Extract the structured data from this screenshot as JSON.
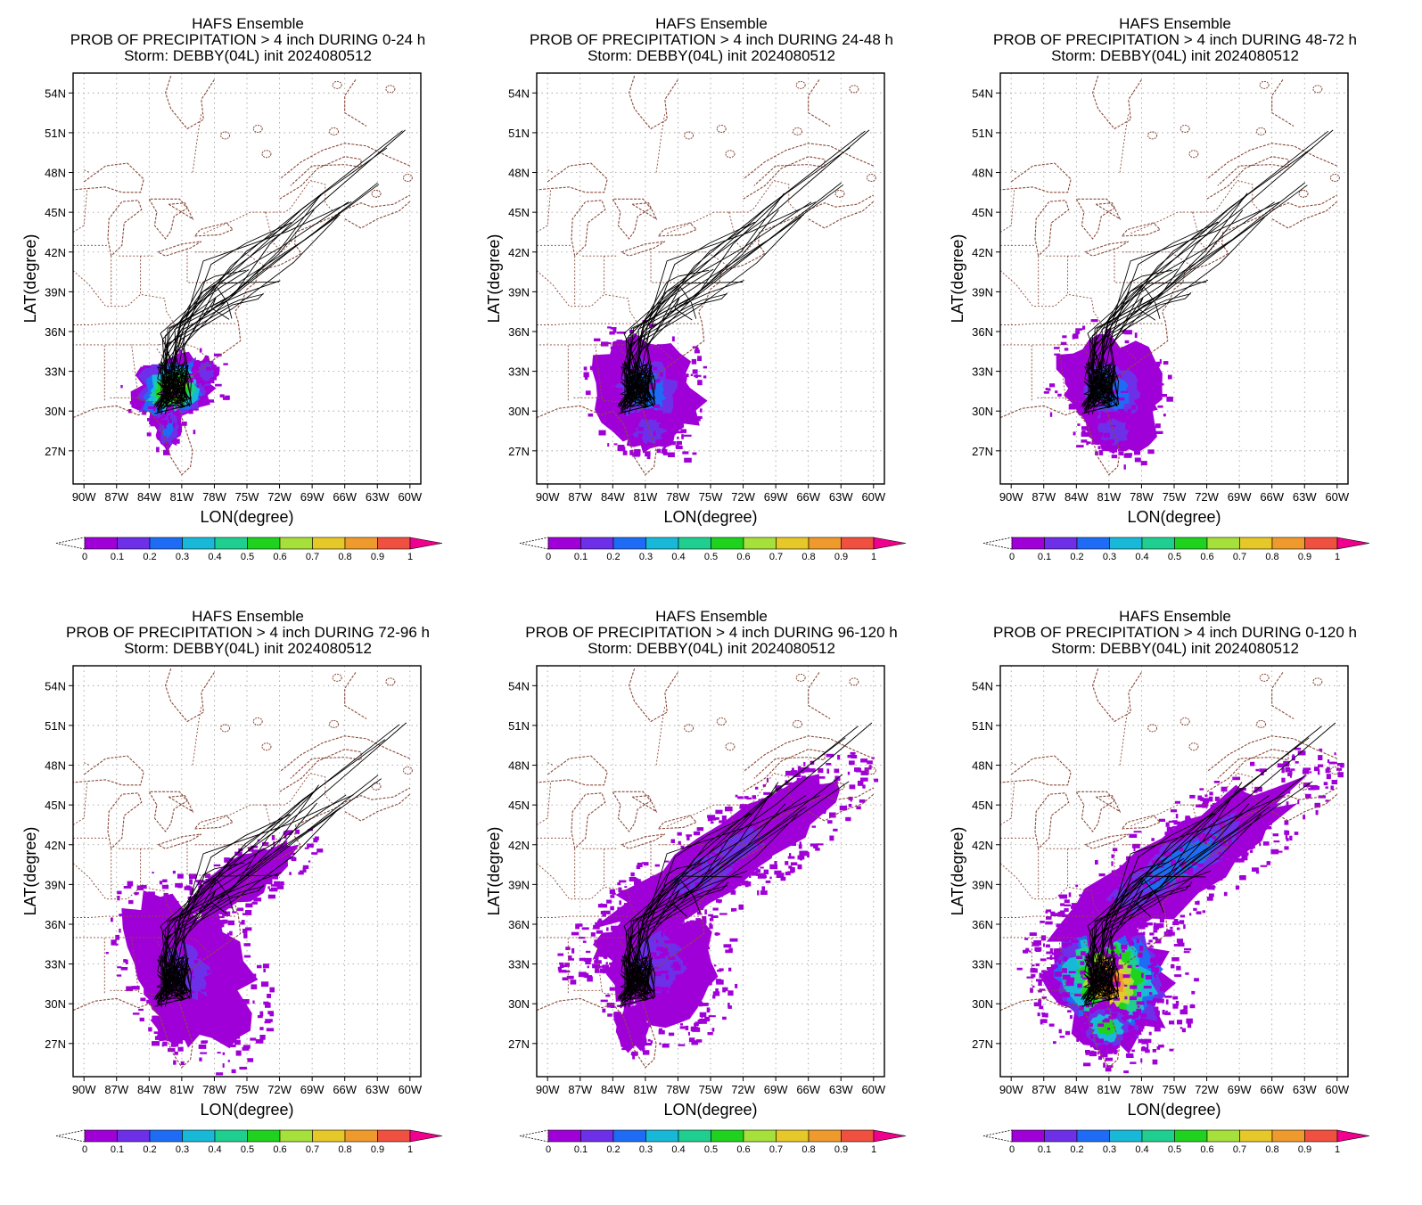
{
  "panels": [
    {
      "title1": "HAFS Ensemble",
      "title2": "PROB OF PRECIPITATION > 4 inch DURING  0-24 h",
      "title3": "Storm: DEBBY(04L) init 2024080512",
      "period": "0-24",
      "intensity": "high-south",
      "spread": 0.2
    },
    {
      "title1": "HAFS Ensemble",
      "title2": "PROB OF PRECIPITATION > 4 inch DURING 24-48 h",
      "title3": "Storm: DEBBY(04L) init 2024080512",
      "period": "24-48",
      "intensity": "low-south",
      "spread": 0.3
    },
    {
      "title1": "HAFS Ensemble",
      "title2": "PROB OF PRECIPITATION > 4 inch DURING 48-72 h",
      "title3": "Storm: DEBBY(04L) init 2024080512",
      "period": "48-72",
      "intensity": "low-south",
      "spread": 0.35
    },
    {
      "title1": "HAFS Ensemble",
      "title2": "PROB OF PRECIPITATION > 4 inch DURING 72-96 h",
      "title3": "Storm: DEBBY(04L) init 2024080512",
      "period": "72-96",
      "intensity": "low-mid",
      "spread": 0.5
    },
    {
      "title1": "HAFS Ensemble",
      "title2": "PROB OF PRECIPITATION > 4 inch DURING 96-120 h",
      "title3": "Storm: DEBBY(04L) init 2024080512",
      "period": "96-120",
      "intensity": "low-north",
      "spread": 1.0
    },
    {
      "title1": "HAFS Ensemble",
      "title2": "PROB OF PRECIPITATION > 4 inch DURING 0-120 h",
      "title3": "Storm: DEBBY(04L) init 2024080512",
      "period": "0-120",
      "intensity": "high-total",
      "spread": 1.0
    }
  ],
  "x_ticks": [
    "90W",
    "87W",
    "84W",
    "81W",
    "78W",
    "75W",
    "72W",
    "69W",
    "66W",
    "63W",
    "60W"
  ],
  "y_ticks": [
    "27N",
    "30N",
    "33N",
    "36N",
    "39N",
    "42N",
    "45N",
    "48N",
    "51N",
    "54N"
  ],
  "xlabel": "LON(degree)",
  "ylabel": "LAT(degree)",
  "colorbar": {
    "labels": [
      "0",
      "0.1",
      "0.2",
      "0.3",
      "0.4",
      "0.5",
      "0.6",
      "0.7",
      "0.8",
      "0.9",
      "1"
    ],
    "colors": [
      "#a000d8",
      "#6e2fe8",
      "#1e6cf5",
      "#18b9d8",
      "#1fcf8f",
      "#1ed21e",
      "#a6e03a",
      "#e6c828",
      "#ef9a2c",
      "#f05040"
    ],
    "over_color": "#f0008c"
  },
  "map_colors": {
    "border": "#8a4a3a",
    "grid": "#9a9a9a",
    "track": "#000000"
  }
}
